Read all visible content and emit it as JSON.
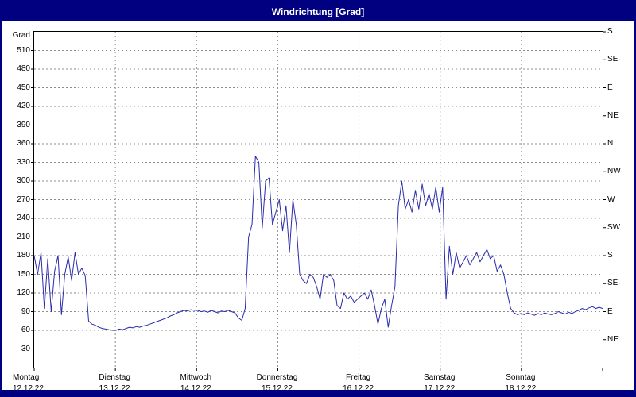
{
  "title": "Windrichtung [Grad]",
  "colors": {
    "frame": "#000080",
    "line": "#2b2bad",
    "grid": "#8c8c8c",
    "text": "#000000",
    "titlebar_bg": "#000080",
    "titlebar_text": "#ffffff"
  },
  "axis": {
    "unit_label": "Grad",
    "y_ticks": [
      510,
      480,
      450,
      420,
      390,
      360,
      330,
      300,
      270,
      240,
      210,
      180,
      150,
      120,
      90,
      60,
      30
    ],
    "right_labels": [
      {
        "deg": 540,
        "label": "S"
      },
      {
        "deg": 495,
        "label": "SE"
      },
      {
        "deg": 450,
        "label": "E"
      },
      {
        "deg": 405,
        "label": "NE"
      },
      {
        "deg": 360,
        "label": "N"
      },
      {
        "deg": 315,
        "label": "NW"
      },
      {
        "deg": 270,
        "label": "W"
      },
      {
        "deg": 225,
        "label": "SW"
      },
      {
        "deg": 180,
        "label": "S"
      },
      {
        "deg": 135,
        "label": "SE"
      },
      {
        "deg": 90,
        "label": "E"
      },
      {
        "deg": 45,
        "label": "NE"
      }
    ],
    "days": [
      {
        "name": "Montag",
        "date": "12.12.22"
      },
      {
        "name": "Dienstag",
        "date": "13.12.22"
      },
      {
        "name": "Mittwoch",
        "date": "14.12.22"
      },
      {
        "name": "Donnerstag",
        "date": "15.12.22"
      },
      {
        "name": "Freitag",
        "date": "16.12.22"
      },
      {
        "name": "Samstag",
        "date": "17.12.22"
      },
      {
        "name": "Sonntag",
        "date": "18.12.22"
      }
    ]
  },
  "chart_data": {
    "type": "line",
    "title": "Windrichtung [Grad]",
    "xlabel": "",
    "ylabel": "Grad",
    "ylim": [
      0,
      540
    ],
    "grid_step_deg": 30,
    "x_unit": "hour",
    "categories": [
      "Montag 12.12.22",
      "Dienstag 13.12.22",
      "Mittwoch 14.12.22",
      "Donnerstag 15.12.22",
      "Freitag 16.12.22",
      "Samstag 17.12.22",
      "Sonntag 18.12.22"
    ],
    "legend": "none",
    "grid": "dashed",
    "series": [
      {
        "name": "Windrichtung",
        "values": [
          180,
          150,
          185,
          95,
          175,
          90,
          155,
          180,
          85,
          150,
          178,
          140,
          185,
          150,
          160,
          148,
          75,
          70,
          68,
          65,
          63,
          62,
          61,
          60,
          60,
          62,
          61,
          63,
          65,
          64,
          66,
          65,
          67,
          68,
          70,
          72,
          74,
          76,
          78,
          80,
          83,
          85,
          88,
          90,
          92,
          91,
          93,
          92,
          92,
          90,
          91,
          89,
          92,
          90,
          88,
          91,
          90,
          92,
          90,
          88,
          80,
          76,
          95,
          210,
          230,
          340,
          330,
          225,
          300,
          305,
          230,
          250,
          270,
          220,
          260,
          185,
          270,
          230,
          150,
          140,
          135,
          150,
          145,
          130,
          110,
          150,
          145,
          150,
          140,
          100,
          95,
          120,
          110,
          115,
          105,
          110,
          115,
          120,
          110,
          125,
          100,
          70,
          95,
          110,
          65,
          100,
          130,
          260,
          300,
          255,
          270,
          250,
          285,
          255,
          295,
          260,
          280,
          255,
          290,
          250,
          290,
          110,
          195,
          150,
          185,
          160,
          170,
          180,
          165,
          175,
          185,
          170,
          180,
          190,
          175,
          180,
          155,
          165,
          150,
          120,
          95,
          88,
          85,
          87,
          85,
          88,
          86,
          84,
          87,
          85,
          88,
          86,
          85,
          87,
          90,
          88,
          86,
          89,
          87,
          90,
          92,
          95,
          93,
          96,
          98,
          95,
          97,
          95
        ]
      }
    ]
  }
}
